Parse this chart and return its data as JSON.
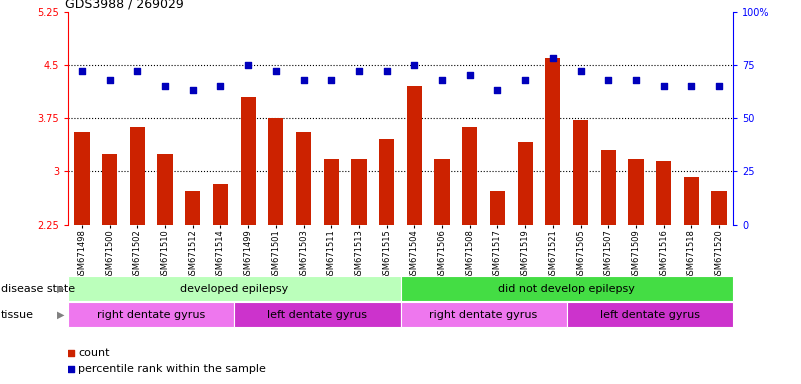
{
  "title": "GDS3988 / 269029",
  "samples": [
    "GSM671498",
    "GSM671500",
    "GSM671502",
    "GSM671510",
    "GSM671512",
    "GSM671514",
    "GSM671499",
    "GSM671501",
    "GSM671503",
    "GSM671511",
    "GSM671513",
    "GSM671515",
    "GSM671504",
    "GSM671506",
    "GSM671508",
    "GSM671517",
    "GSM671519",
    "GSM671521",
    "GSM671505",
    "GSM671507",
    "GSM671509",
    "GSM671516",
    "GSM671518",
    "GSM671520"
  ],
  "bar_values": [
    3.55,
    3.25,
    3.62,
    3.25,
    2.72,
    2.82,
    4.05,
    3.75,
    3.55,
    3.18,
    3.18,
    3.45,
    4.2,
    3.18,
    3.62,
    2.72,
    3.42,
    4.6,
    3.72,
    3.3,
    3.18,
    3.15,
    2.92,
    2.72
  ],
  "blue_values": [
    72,
    68,
    72,
    65,
    63,
    65,
    75,
    72,
    68,
    68,
    72,
    72,
    75,
    68,
    70,
    63,
    68,
    78,
    72,
    68,
    68,
    65,
    65,
    65
  ],
  "ylim_left": [
    2.25,
    5.25
  ],
  "yticks_left": [
    2.25,
    3.0,
    3.75,
    4.5,
    5.25
  ],
  "yticks_right": [
    0,
    25,
    50,
    75,
    100
  ],
  "ytick_labels_left": [
    "2.25",
    "3",
    "3.75",
    "4.5",
    "5.25"
  ],
  "ytick_labels_right": [
    "0",
    "25",
    "50",
    "75",
    "100%"
  ],
  "hlines": [
    3.0,
    3.75,
    4.5
  ],
  "bar_color": "#cc2200",
  "blue_color": "#0000bb",
  "disease_groups": [
    {
      "label": "developed epilepsy",
      "start": 0,
      "end": 12,
      "color": "#bbffbb"
    },
    {
      "label": "did not develop epilepsy",
      "start": 12,
      "end": 24,
      "color": "#44dd44"
    }
  ],
  "tissue_groups": [
    {
      "label": "right dentate gyrus",
      "start": 0,
      "end": 6,
      "color": "#ee77ee"
    },
    {
      "label": "left dentate gyrus",
      "start": 6,
      "end": 12,
      "color": "#cc33cc"
    },
    {
      "label": "right dentate gyrus",
      "start": 12,
      "end": 18,
      "color": "#ee77ee"
    },
    {
      "label": "left dentate gyrus",
      "start": 18,
      "end": 24,
      "color": "#cc33cc"
    }
  ],
  "disease_state_label": "disease state",
  "tissue_label": "tissue",
  "legend_bar_label": "count",
  "legend_dot_label": "percentile rank within the sample",
  "title_fontsize": 9,
  "tick_fontsize": 7,
  "label_fontsize": 8,
  "annot_fontsize": 8,
  "xticklabel_fontsize": 6
}
